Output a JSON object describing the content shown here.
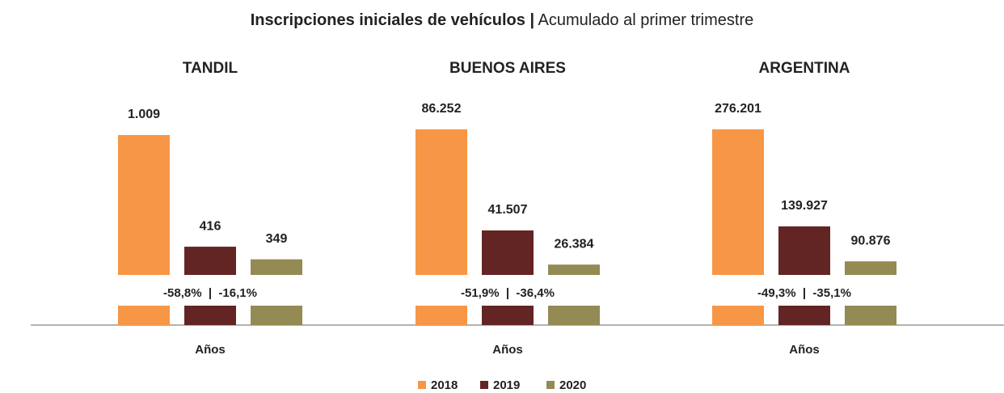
{
  "title": "Inscripciones iniciales de vehículos |",
  "subtitle": "Acumulado al primer trimestre",
  "chart_data": [
    {
      "type": "bar",
      "title": "TANDIL",
      "categories": [
        "Años"
      ],
      "ylim": [
        266,
        1125
      ],
      "annotation": "-58,8%  |  -16,1%",
      "series": [
        {
          "name": "2018",
          "color": "#f79646",
          "values": [
            1009
          ],
          "value_labels": [
            "1.009"
          ]
        },
        {
          "name": "2019",
          "color": "#632523",
          "values": [
            416
          ]
        },
        {
          "name": "2020",
          "color": "#948a54",
          "values": [
            349
          ]
        }
      ]
    },
    {
      "type": "bar",
      "title": "BUENOS AIRES",
      "categories": [
        "Años"
      ],
      "ylim": [
        21800,
        93400
      ],
      "annotation": "-51,9%  |  -36,4%",
      "series": [
        {
          "name": "2018",
          "color": "#f79646",
          "values": [
            86252
          ],
          "value_labels": [
            "86.252"
          ]
        },
        {
          "name": "2019",
          "color": "#632523",
          "values": [
            41507
          ],
          "value_labels": [
            "41.507"
          ]
        },
        {
          "name": "2020",
          "color": "#948a54",
          "values": [
            26384
          ],
          "value_labels": [
            "26.384"
          ]
        }
      ]
    },
    {
      "type": "bar",
      "title": "ARGENTINA",
      "categories": [
        "Años"
      ],
      "ylim": [
        71800,
        298800
      ],
      "annotation": "-49,3%  |  -35,1%",
      "series": [
        {
          "name": "2018",
          "color": "#f79646",
          "values": [
            276201
          ],
          "value_labels": [
            "276.201"
          ]
        },
        {
          "name": "2019",
          "color": "#632523",
          "values": [
            139927
          ],
          "value_labels": [
            "139.927"
          ]
        },
        {
          "name": "2020",
          "color": "#948a54",
          "values": [
            90876
          ],
          "value_labels": [
            "90.876"
          ]
        }
      ]
    }
  ]
}
